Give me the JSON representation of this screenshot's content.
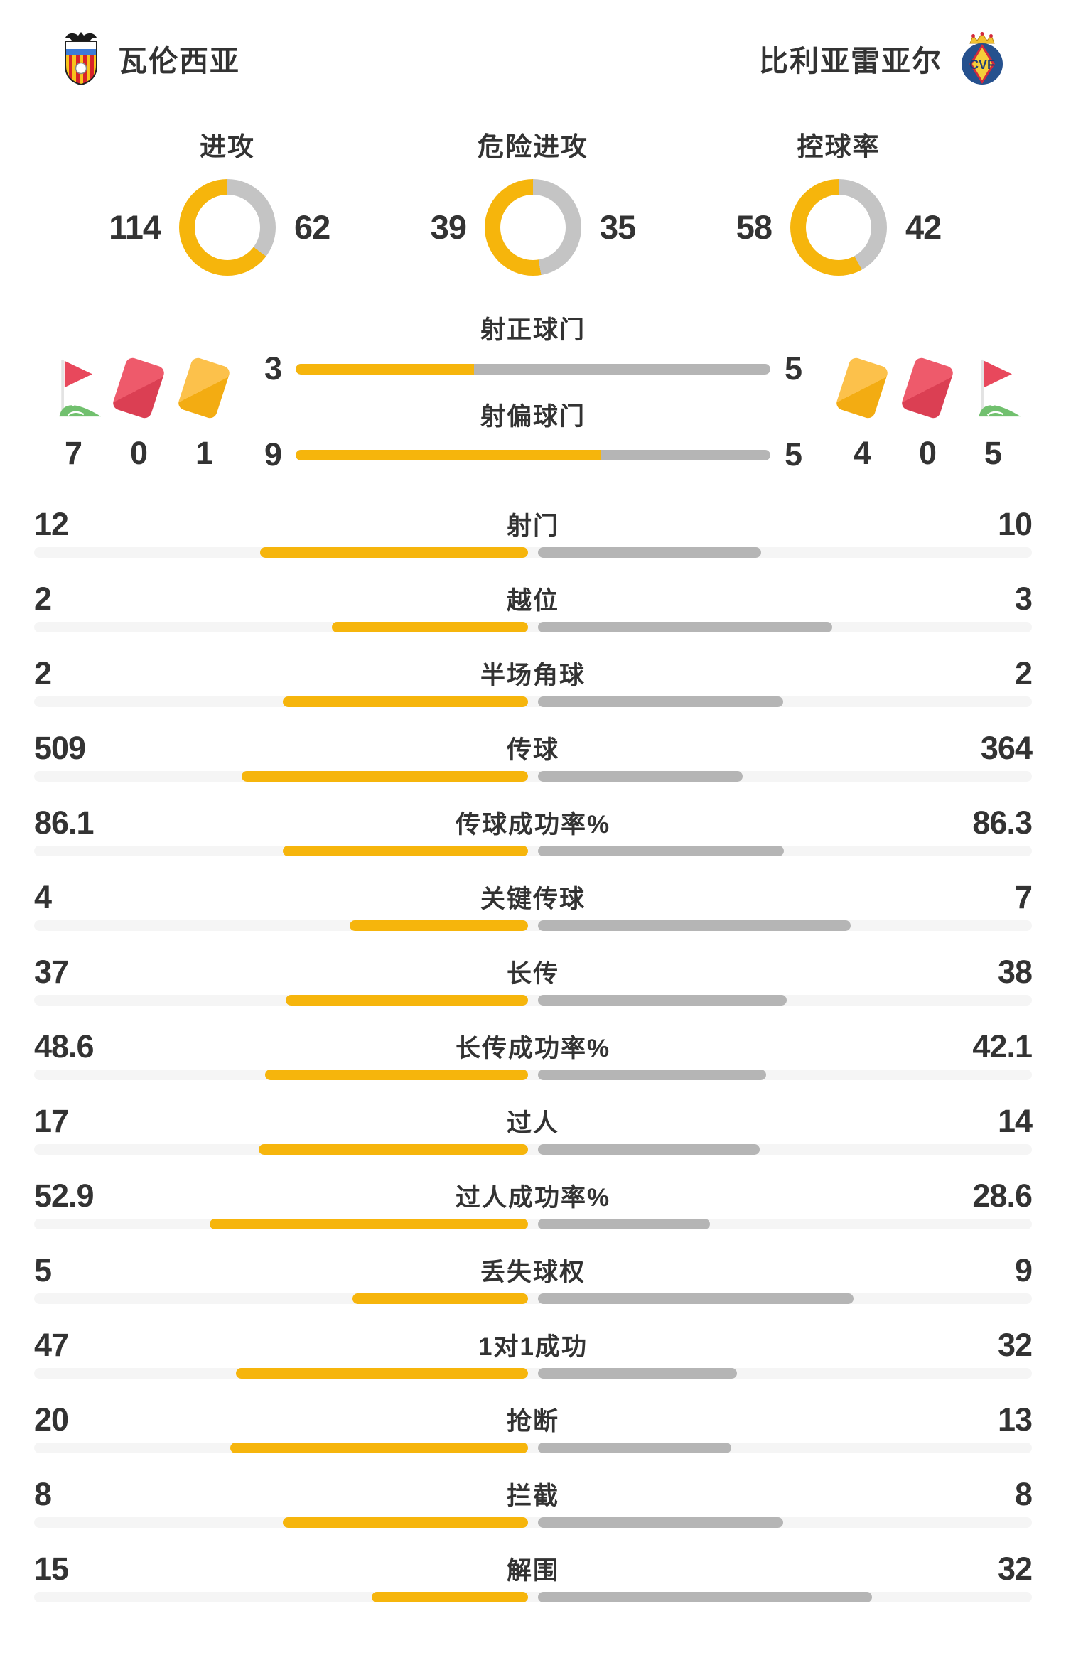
{
  "teams": {
    "home": {
      "name": "瓦伦西亚",
      "logo_icon": "valencia-crest-icon"
    },
    "away": {
      "name": "比利亚雷亚尔",
      "logo_icon": "villarreal-crest-icon"
    }
  },
  "colors": {
    "accent_yellow": "#F6B50C",
    "bar_gray": "#B5B5B5",
    "donut_gray": "#C4C4C4",
    "track_gray": "#F5F5F5",
    "text": "#333333",
    "card_red": "#E2495E",
    "card_yellow": "#F7B930",
    "flag_red": "#E8485C",
    "flag_green": "#71C06E"
  },
  "donuts": [
    {
      "label": "进攻",
      "home": 114,
      "away": 62
    },
    {
      "label": "危险进攻",
      "home": 39,
      "away": 35
    },
    {
      "label": "控球率",
      "home": 58,
      "away": 42
    }
  ],
  "discipline": {
    "home": {
      "items": [
        {
          "icon": "corner-flag-icon",
          "count": 7
        },
        {
          "icon": "red-card-icon",
          "count": 0
        },
        {
          "icon": "yellow-card-icon",
          "count": 1
        }
      ]
    },
    "away": {
      "items": [
        {
          "icon": "yellow-card-icon",
          "count": 4
        },
        {
          "icon": "red-card-icon",
          "count": 0
        },
        {
          "icon": "corner-flag-icon",
          "count": 5
        }
      ]
    }
  },
  "shots": {
    "rows": [
      {
        "label": "射正球门",
        "home": 3,
        "away": 5
      },
      {
        "label": "射偏球门",
        "home": 9,
        "away": 5
      }
    ]
  },
  "stats": {
    "rows": [
      {
        "label": "射门",
        "home": 12,
        "away": 10
      },
      {
        "label": "越位",
        "home": 2,
        "away": 3
      },
      {
        "label": "半场角球",
        "home": 2,
        "away": 2
      },
      {
        "label": "传球",
        "home": 509,
        "away": 364
      },
      {
        "label": "传球成功率%",
        "home": 86.1,
        "away": 86.3
      },
      {
        "label": "关键传球",
        "home": 4,
        "away": 7
      },
      {
        "label": "长传",
        "home": 37,
        "away": 38
      },
      {
        "label": "长传成功率%",
        "home": 48.6,
        "away": 42.1
      },
      {
        "label": "过人",
        "home": 17,
        "away": 14
      },
      {
        "label": "过人成功率%",
        "home": 52.9,
        "away": 28.6
      },
      {
        "label": "丢失球权",
        "home": 5,
        "away": 9
      },
      {
        "label": "1对1成功",
        "home": 47,
        "away": 32
      },
      {
        "label": "抢断",
        "home": 20,
        "away": 13
      },
      {
        "label": "拦截",
        "home": 8,
        "away": 8
      },
      {
        "label": "解围",
        "home": 15,
        "away": 32
      }
    ]
  },
  "chart_data": [
    {
      "type": "pie",
      "variant": "donut",
      "title": "进攻",
      "series": [
        {
          "name": "瓦伦西亚",
          "value": 114
        },
        {
          "name": "比利亚雷亚尔",
          "value": 62
        }
      ],
      "colors": [
        "#F6B50C",
        "#C4C4C4"
      ],
      "legend_position": "sides"
    },
    {
      "type": "pie",
      "variant": "donut",
      "title": "危险进攻",
      "series": [
        {
          "name": "瓦伦西亚",
          "value": 39
        },
        {
          "name": "比利亚雷亚尔",
          "value": 35
        }
      ],
      "colors": [
        "#F6B50C",
        "#C4C4C4"
      ],
      "legend_position": "sides"
    },
    {
      "type": "pie",
      "variant": "donut",
      "title": "控球率",
      "series": [
        {
          "name": "瓦伦西亚",
          "value": 58
        },
        {
          "name": "比利亚雷亚尔",
          "value": 42
        }
      ],
      "colors": [
        "#F6B50C",
        "#C4C4C4"
      ],
      "legend_position": "sides"
    },
    {
      "type": "bar",
      "orientation": "horizontal-mirrored-from-center",
      "categories": [
        "射正球门",
        "射偏球门",
        "射门",
        "越位",
        "半场角球",
        "传球",
        "传球成功率%",
        "关键传球",
        "长传",
        "长传成功率%",
        "过人",
        "过人成功率%",
        "丢失球权",
        "1对1成功",
        "抢断",
        "拦截",
        "解围"
      ],
      "series": [
        {
          "name": "瓦伦西亚",
          "values": [
            3,
            9,
            12,
            2,
            2,
            509,
            86.1,
            4,
            37,
            48.6,
            17,
            52.9,
            5,
            47,
            20,
            8,
            15
          ]
        },
        {
          "name": "比利亚雷亚尔",
          "values": [
            5,
            5,
            10,
            3,
            2,
            364,
            86.3,
            7,
            38,
            42.1,
            14,
            28.6,
            9,
            32,
            13,
            8,
            32
          ]
        }
      ],
      "colors": [
        "#F6B50C",
        "#B5B5B5"
      ],
      "bar_scale": "value / (home+away) of half width"
    },
    {
      "type": "table",
      "columns": [
        "瓦伦西亚",
        "比利亚雷亚尔"
      ],
      "rows": [
        [
          "角球",
          7,
          5
        ],
        [
          "红牌",
          0,
          0
        ],
        [
          "黄牌",
          1,
          4
        ]
      ]
    }
  ]
}
